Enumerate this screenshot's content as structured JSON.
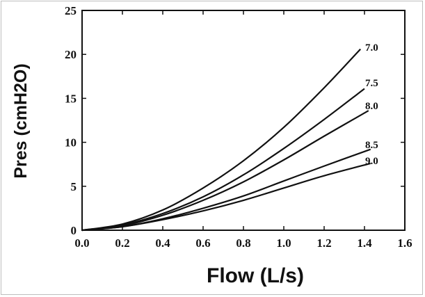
{
  "chart_data": {
    "type": "line",
    "title": "",
    "xlabel": "Flow (L/s)",
    "ylabel": "Pres (cmH2O)",
    "xlim": [
      0.0,
      1.6
    ],
    "ylim": [
      0,
      25
    ],
    "x_ticks": [
      "0.0",
      "0.2",
      "0.4",
      "0.6",
      "0.8",
      "1.0",
      "1.2",
      "1.4",
      "1.6"
    ],
    "y_ticks": [
      "0",
      "5",
      "10",
      "15",
      "20",
      "25"
    ],
    "grid": false,
    "legend": "none",
    "series": [
      {
        "name": "7.0",
        "x": [
          0.0,
          0.2,
          0.4,
          0.6,
          0.8,
          1.0,
          1.2,
          1.38
        ],
        "y": [
          0.0,
          0.7,
          2.3,
          4.8,
          7.9,
          11.7,
          16.2,
          20.6
        ]
      },
      {
        "name": "7.5",
        "x": [
          0.0,
          0.2,
          0.4,
          0.6,
          0.8,
          1.0,
          1.2,
          1.4
        ],
        "y": [
          0.0,
          0.6,
          1.9,
          3.8,
          6.3,
          9.3,
          12.6,
          16.1
        ]
      },
      {
        "name": "8.0",
        "x": [
          0.0,
          0.2,
          0.4,
          0.6,
          0.8,
          1.0,
          1.2,
          1.42
        ],
        "y": [
          0.0,
          0.5,
          1.7,
          3.4,
          5.5,
          8.0,
          10.7,
          13.6
        ]
      },
      {
        "name": "8.5",
        "x": [
          0.0,
          0.2,
          0.4,
          0.6,
          0.8,
          1.0,
          1.2,
          1.43
        ],
        "y": [
          0.0,
          0.4,
          1.3,
          2.5,
          3.9,
          5.6,
          7.3,
          9.2
        ]
      },
      {
        "name": "9.0",
        "x": [
          0.0,
          0.2,
          0.4,
          0.6,
          0.8,
          1.0,
          1.2,
          1.43
        ],
        "y": [
          0.0,
          0.4,
          1.2,
          2.2,
          3.4,
          4.8,
          6.2,
          7.6
        ]
      }
    ]
  }
}
